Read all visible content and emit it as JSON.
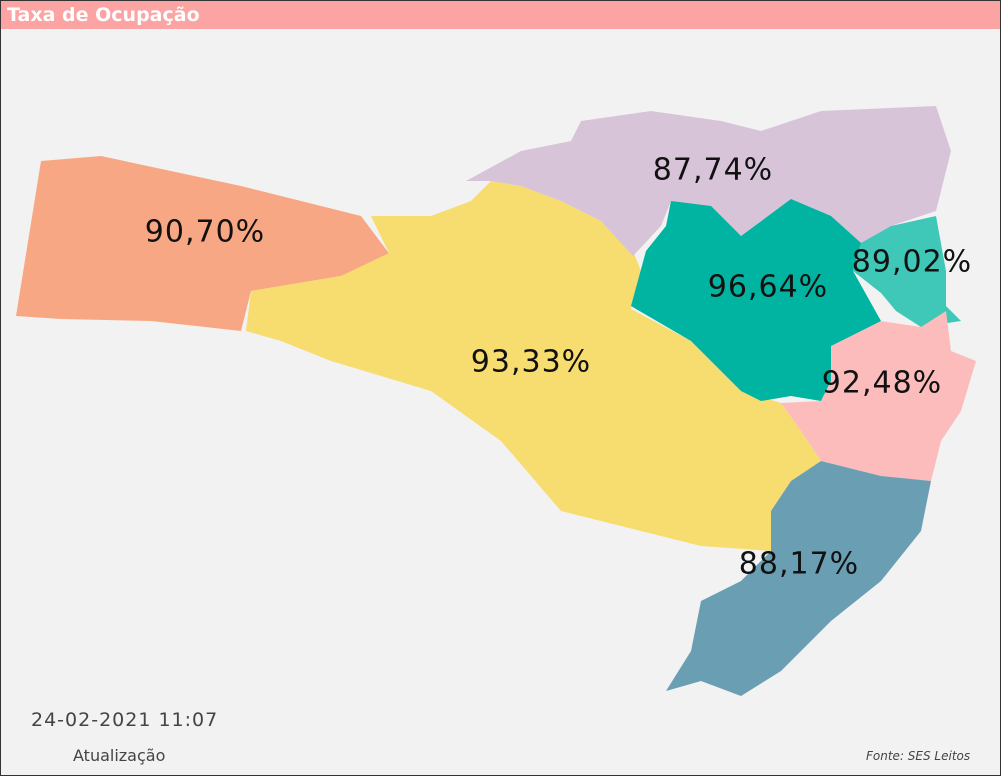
{
  "header": {
    "title": "Taxa de Ocupação"
  },
  "regions": [
    {
      "label": "90,70%",
      "color": "#f8a784"
    },
    {
      "label": "93,33%",
      "color": "#f7dc6f"
    },
    {
      "label": "87,74%",
      "color": "#d8c4d9"
    },
    {
      "label": "96,64%",
      "color": "#00b4a1"
    },
    {
      "label": "89,02%",
      "color": "#3fc8b8"
    },
    {
      "label": "92,48%",
      "color": "#fcbcbc"
    },
    {
      "label": "88,17%",
      "color": "#6a9fb3"
    }
  ],
  "footer": {
    "timestamp": "24-02-2021 11:07",
    "timestamp_caption": "Atualização",
    "source": "Fonte: SES Leitos"
  }
}
